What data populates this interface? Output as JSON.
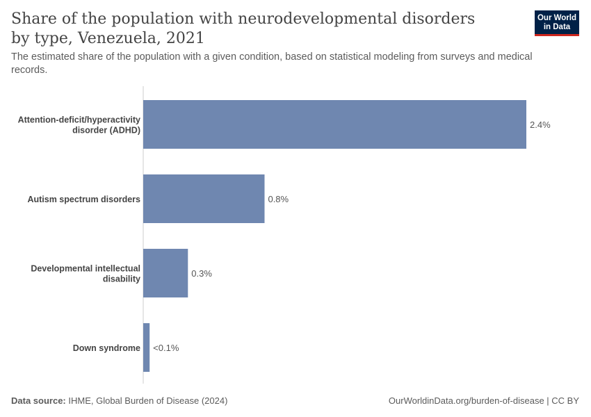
{
  "header": {
    "title": "Share of the population with neurodevelopmental disorders by type, Venezuela, 2021",
    "subtitle": "The estimated share of the population with a given condition, based on statistical modeling from surveys and medical records.",
    "logo_line1": "Our World",
    "logo_line2": "in Data"
  },
  "footer": {
    "source_label": "Data source:",
    "source_text": "IHME, Global Burden of Disease (2024)",
    "url": "OurWorldinData.org/burden-of-disease | CC BY"
  },
  "colors": {
    "bar": "#6f87b0",
    "axis": "#cccccc",
    "logo_bg": "#002147",
    "logo_accent": "#ce261e"
  },
  "chart_data": {
    "type": "bar",
    "orientation": "horizontal",
    "unit": "%",
    "xlim": [
      0,
      2.4
    ],
    "grid": false,
    "categories": [
      [
        "Attention-deficit/hyperactivity",
        "disorder (ADHD)"
      ],
      [
        "Autism spectrum disorders"
      ],
      [
        "Developmental intellectual",
        "disability"
      ],
      [
        "Down syndrome"
      ]
    ],
    "values": [
      2.4,
      0.76,
      0.28,
      0.04
    ],
    "value_labels": [
      "2.4%",
      "0.8%",
      "0.3%",
      "<0.1%"
    ]
  }
}
